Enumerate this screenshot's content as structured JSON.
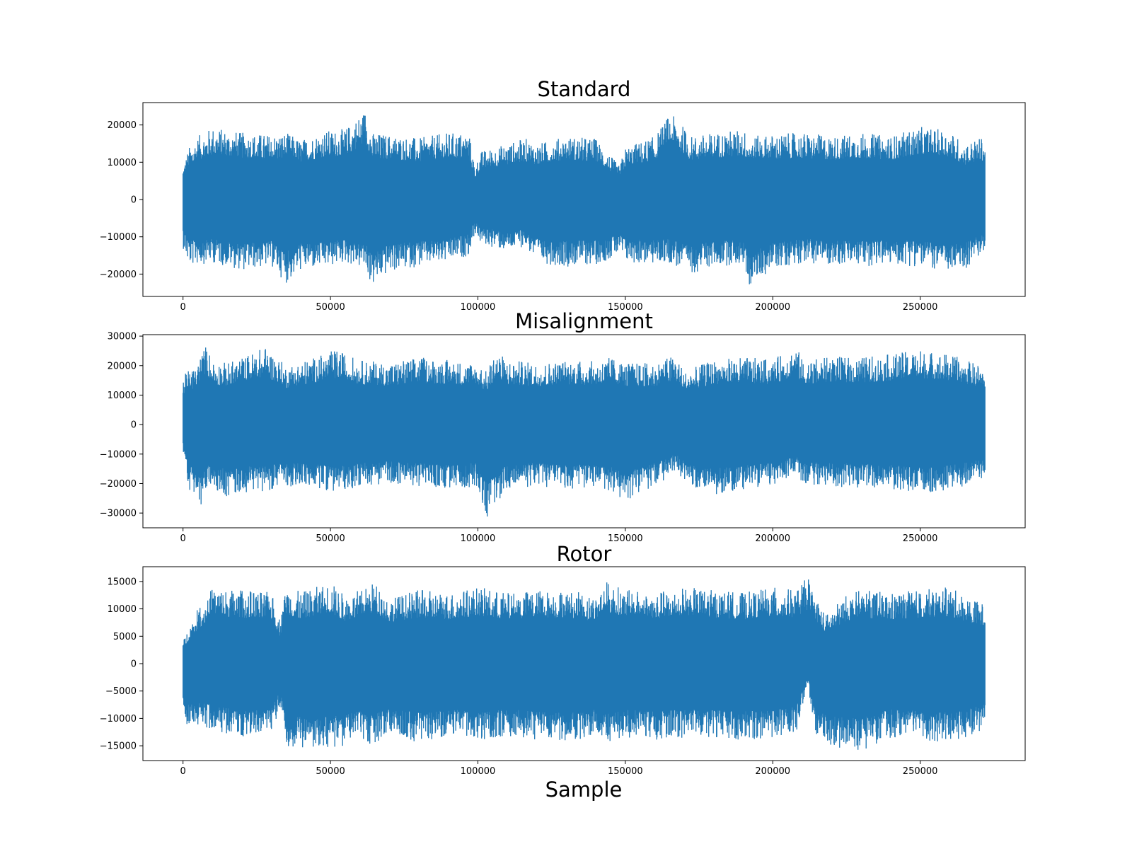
{
  "xlabel": "Sample",
  "chart_data": [
    {
      "type": "line",
      "title": "Standard",
      "xlabel": "",
      "ylabel": "",
      "x_range": [
        0,
        272000
      ],
      "xlim": [
        -13600,
        285600
      ],
      "ylim": [
        -26000,
        26000
      ],
      "x_ticks": [
        0,
        50000,
        100000,
        150000,
        200000,
        250000
      ],
      "x_tick_labels": [
        "0",
        "50000",
        "100000",
        "150000",
        "200000",
        "250000"
      ],
      "y_ticks": [
        20000,
        10000,
        0,
        -10000,
        -20000
      ],
      "y_tick_labels": [
        "20000",
        "10000",
        "0",
        "−10000",
        "−20000"
      ],
      "color": "#1f77b4",
      "envelope": {
        "x": [
          0,
          2000,
          5000,
          10000,
          20000,
          30000,
          35000,
          40000,
          48000,
          55000,
          62000,
          64000,
          70000,
          80000,
          90000,
          97000,
          99000,
          101000,
          110000,
          116000,
          120000,
          130000,
          140000,
          148000,
          150000,
          160000,
          165000,
          168000,
          172000,
          180000,
          190000,
          192000,
          200000,
          210000,
          220000,
          230000,
          240000,
          250000,
          260000,
          265000,
          272000
        ],
        "upper": [
          9000,
          14000,
          17000,
          19500,
          18000,
          17500,
          18000,
          16000,
          18500,
          19000,
          24500,
          18000,
          17500,
          16500,
          18000,
          18000,
          9000,
          13000,
          15000,
          16500,
          15000,
          17000,
          16500,
          9000,
          14000,
          17000,
          23000,
          21500,
          17000,
          18000,
          19000,
          17000,
          17500,
          18000,
          17000,
          18000,
          17000,
          19500,
          18500,
          15000,
          17000
        ],
        "lower": [
          -13000,
          -18000,
          -17500,
          -17000,
          -19000,
          -18000,
          -22500,
          -19000,
          -18500,
          -17000,
          -19000,
          -23500,
          -19500,
          -18000,
          -17000,
          -15000,
          -9000,
          -12000,
          -14000,
          -12500,
          -17000,
          -18000,
          -17500,
          -15000,
          -17000,
          -17500,
          -17000,
          -18500,
          -20000,
          -18000,
          -17500,
          -23500,
          -18500,
          -17000,
          -17500,
          -18000,
          -17500,
          -18000,
          -19500,
          -19000,
          -14000
        ]
      }
    },
    {
      "type": "line",
      "title": "Misalignment",
      "xlabel": "",
      "ylabel": "",
      "x_range": [
        0,
        272000
      ],
      "xlim": [
        -13600,
        285600
      ],
      "ylim": [
        -35000,
        30500
      ],
      "x_ticks": [
        0,
        50000,
        100000,
        150000,
        200000,
        250000
      ],
      "x_tick_labels": [
        "0",
        "50000",
        "100000",
        "150000",
        "200000",
        "250000"
      ],
      "y_ticks": [
        30000,
        20000,
        10000,
        0,
        -10000,
        -20000,
        -30000
      ],
      "y_tick_labels": [
        "30000",
        "20000",
        "10000",
        "0",
        "−10000",
        "−20000",
        "−30000"
      ],
      "color": "#1f77b4",
      "envelope": {
        "x": [
          0,
          2000,
          4000,
          6000,
          8000,
          10000,
          15000,
          20000,
          28000,
          35000,
          45000,
          52000,
          60000,
          70000,
          80000,
          90000,
          100000,
          103000,
          106000,
          110000,
          120000,
          130000,
          140000,
          145000,
          150000,
          160000,
          167000,
          170000,
          180000,
          190000,
          200000,
          208000,
          210000,
          220000,
          230000,
          240000,
          250000,
          260000,
          265000,
          272000
        ],
        "upper": [
          16000,
          19000,
          19000,
          24000,
          27500,
          22000,
          21000,
          23000,
          26500,
          20000,
          23000,
          25500,
          22000,
          21000,
          23000,
          22000,
          21000,
          18000,
          25500,
          22000,
          21000,
          22000,
          21500,
          23000,
          21000,
          21000,
          24000,
          18000,
          22000,
          23000,
          22000,
          27000,
          22000,
          23000,
          23000,
          24000,
          25500,
          24000,
          22000,
          20000
        ],
        "lower": [
          -10000,
          -22000,
          -24500,
          -29500,
          -22000,
          -21000,
          -25000,
          -23000,
          -22500,
          -21000,
          -21500,
          -23000,
          -21000,
          -20000,
          -21000,
          -22000,
          -21000,
          -32000,
          -27000,
          -22000,
          -21000,
          -22000,
          -21500,
          -23000,
          -26000,
          -21000,
          -16000,
          -20000,
          -24000,
          -22000,
          -21000,
          -16000,
          -20000,
          -21000,
          -21500,
          -22000,
          -23500,
          -22000,
          -21000,
          -18000
        ]
      }
    },
    {
      "type": "line",
      "title": "Rotor",
      "xlabel": "Sample",
      "ylabel": "",
      "x_range": [
        0,
        272000
      ],
      "xlim": [
        -13600,
        285600
      ],
      "ylim": [
        -17700,
        17700
      ],
      "x_ticks": [
        0,
        50000,
        100000,
        150000,
        200000,
        250000
      ],
      "x_tick_labels": [
        "0",
        "50000",
        "100000",
        "150000",
        "200000",
        "250000"
      ],
      "y_ticks": [
        15000,
        10000,
        5000,
        0,
        -5000,
        -10000,
        -15000
      ],
      "y_tick_labels": [
        "15000",
        "10000",
        "5000",
        "0",
        "−5000",
        "−10000",
        "−15000"
      ],
      "color": "#1f77b4",
      "envelope": {
        "x": [
          0,
          2000,
          5000,
          10000,
          20000,
          30000,
          33000,
          35000,
          40000,
          50000,
          55000,
          60000,
          65000,
          70000,
          80000,
          90000,
          100000,
          110000,
          120000,
          130000,
          140000,
          143000,
          150000,
          160000,
          170000,
          180000,
          190000,
          200000,
          208000,
          212000,
          214000,
          218000,
          225000,
          230000,
          240000,
          250000,
          260000,
          265000,
          272000
        ],
        "upper": [
          4000,
          7000,
          10000,
          14000,
          13500,
          13000,
          8000,
          14500,
          13000,
          15000,
          12500,
          13500,
          15000,
          12000,
          13500,
          13000,
          14000,
          13000,
          13500,
          13500,
          12500,
          15300,
          13500,
          13000,
          14000,
          13500,
          13000,
          14000,
          13500,
          16000,
          13000,
          9000,
          12500,
          13500,
          13000,
          13500,
          14000,
          12500,
          11000
        ],
        "lower": [
          -10000,
          -12000,
          -11500,
          -12000,
          -14000,
          -13000,
          -8000,
          -16000,
          -15500,
          -15500,
          -15000,
          -14000,
          -15000,
          -13000,
          -14500,
          -13500,
          -14000,
          -13500,
          -14000,
          -14500,
          -13500,
          -15000,
          -13500,
          -14000,
          -13500,
          -13500,
          -14000,
          -13500,
          -12500,
          -4000,
          -13000,
          -15000,
          -16000,
          -16000,
          -13500,
          -14000,
          -14500,
          -13500,
          -12000
        ]
      }
    }
  ]
}
